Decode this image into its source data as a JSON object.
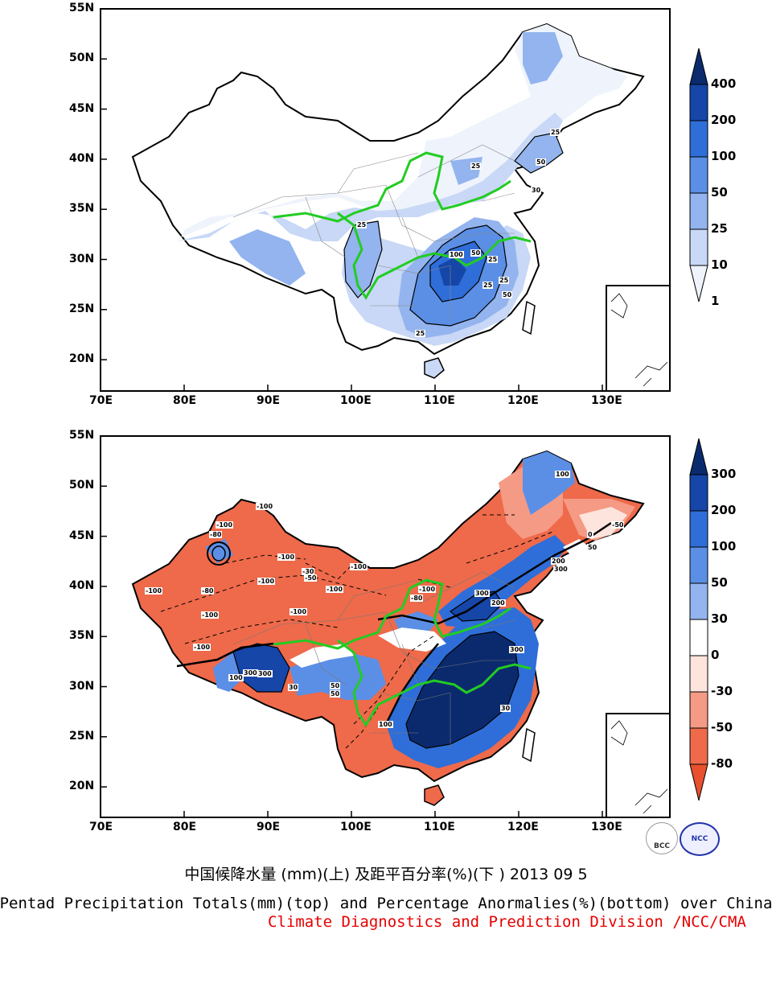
{
  "top_map": {
    "lat_labels": [
      "55N",
      "50N",
      "45N",
      "40N",
      "35N",
      "30N",
      "25N",
      "20N"
    ],
    "lon_labels": [
      "70E",
      "80E",
      "90E",
      "100E",
      "110E",
      "120E",
      "130E"
    ],
    "colorbar": {
      "labels": [
        "400",
        "200",
        "100",
        "50",
        "25",
        "10",
        "1"
      ],
      "colors": [
        "#0b2a6e",
        "#1546a8",
        "#2f6ed8",
        "#5b8fe6",
        "#93b4ee",
        "#c8d8f6",
        "#eef3fc"
      ]
    },
    "contour_labels": [
      "25",
      "25",
      "25",
      "50",
      "100",
      "50",
      "25",
      "25",
      "50",
      "25",
      "30",
      "25"
    ]
  },
  "bottom_map": {
    "lat_labels": [
      "55N",
      "50N",
      "45N",
      "40N",
      "35N",
      "30N",
      "25N",
      "20N"
    ],
    "lon_labels": [
      "70E",
      "80E",
      "90E",
      "100E",
      "110E",
      "120E",
      "130E"
    ],
    "colorbar": {
      "labels": [
        "300",
        "200",
        "100",
        "50",
        "30",
        "0",
        "-30",
        "-50",
        "-80"
      ],
      "colors": [
        "#0b2a6e",
        "#1546a8",
        "#2f6ed8",
        "#5b8fe6",
        "#93b4ee",
        "#ffffff",
        "#fde4dc",
        "#f59a84",
        "#ee6a4a",
        "#e8502e"
      ]
    },
    "contour_labels": [
      "-100",
      "-100",
      "-80",
      "-100",
      "-100",
      "-100",
      "-80",
      "-100",
      "-100",
      "-100",
      "-100",
      "-30",
      "-50",
      "-100",
      "300",
      "200",
      "100",
      "300",
      "300",
      "50",
      "30",
      "100",
      "200",
      "300",
      "-100",
      "-80",
      "-50",
      "0",
      "30",
      "50",
      "50",
      "300",
      "100"
    ]
  },
  "captions": {
    "cn": "中国候降水量 (mm)(上) 及距平百分率(%)(下 ) 2013 09 5",
    "en": "Pentad Precipitation Totals(mm)(top) and Percentage Anormalies(%)(bottom) over China",
    "division": "Climate Diagnostics and Prediction Division /NCC/CMA"
  },
  "logos": {
    "left": "BCC",
    "right": "NCC"
  }
}
